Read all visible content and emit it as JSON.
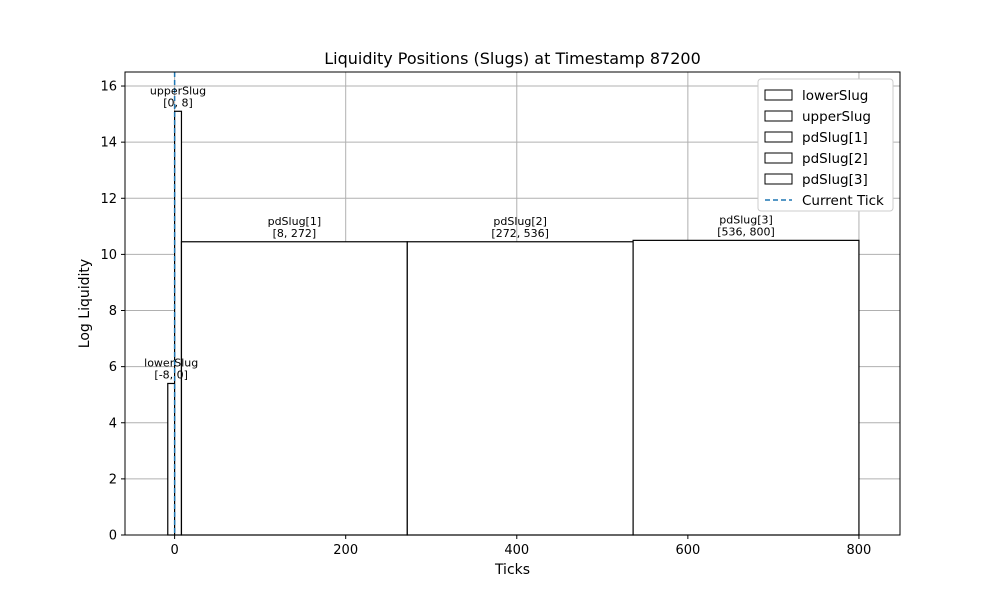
{
  "chart_data": {
    "type": "bar",
    "title": "Liquidity Positions (Slugs) at Timestamp 87200",
    "xlabel": "Ticks",
    "ylabel": "Log Liquidity",
    "xlim": [
      -58,
      848
    ],
    "ylim": [
      0,
      16.5
    ],
    "xticks": [
      0,
      200,
      400,
      600,
      800
    ],
    "yticks": [
      0,
      2,
      4,
      6,
      8,
      10,
      12,
      14,
      16
    ],
    "grid": true,
    "legend_position": "top-right",
    "series": [
      {
        "name": "lowerSlug",
        "start": -8,
        "end": 0,
        "value": 5.4,
        "annotation": [
          "lowerSlug",
          "[-8, 0]"
        ]
      },
      {
        "name": "upperSlug",
        "start": 0,
        "end": 8,
        "value": 15.1,
        "annotation": [
          "upperSlug",
          "[0, 8]"
        ]
      },
      {
        "name": "pdSlug[1]",
        "start": 8,
        "end": 272,
        "value": 10.45,
        "annotation": [
          "pdSlug[1]",
          "[8, 272]"
        ]
      },
      {
        "name": "pdSlug[2]",
        "start": 272,
        "end": 536,
        "value": 10.45,
        "annotation": [
          "pdSlug[2]",
          "[272, 536]"
        ]
      },
      {
        "name": "pdSlug[3]",
        "start": 536,
        "end": 800,
        "value": 10.5,
        "annotation": [
          "pdSlug[3]",
          "[536, 800]"
        ]
      }
    ],
    "current_tick": {
      "name": "Current Tick",
      "x": 0,
      "color": "#1f77b4"
    },
    "bar_edge_color": "#000000",
    "bar_fill_color": "#ffffff"
  }
}
